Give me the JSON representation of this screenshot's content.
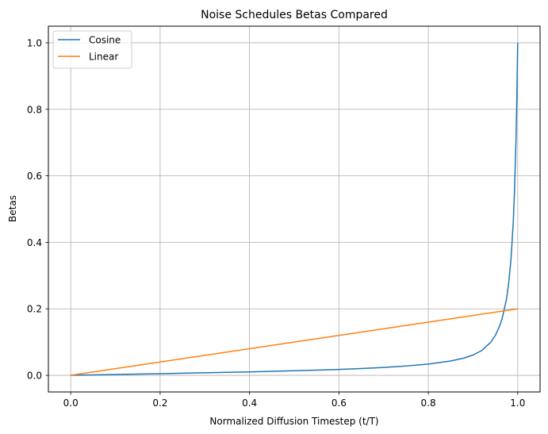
{
  "chart_data": {
    "type": "line",
    "title": "Noise Schedules Betas Compared",
    "xlabel": "Normalized Diffusion Timestep (t/T)",
    "ylabel": "Betas",
    "xlim": [
      -0.05,
      1.05
    ],
    "ylim": [
      -0.05,
      1.05
    ],
    "xticks": [
      "0.0",
      "0.2",
      "0.4",
      "0.6",
      "0.8",
      "1.0"
    ],
    "yticks": [
      "0.0",
      "0.2",
      "0.4",
      "0.6",
      "0.8",
      "1.0"
    ],
    "grid": true,
    "legend_position": "upper-left",
    "series": [
      {
        "name": "Cosine",
        "color": "#1f77b4",
        "x": [
          0.0,
          0.05,
          0.1,
          0.15,
          0.2,
          0.25,
          0.3,
          0.35,
          0.4,
          0.45,
          0.5,
          0.55,
          0.6,
          0.65,
          0.7,
          0.75,
          0.8,
          0.85,
          0.88,
          0.9,
          0.92,
          0.94,
          0.95,
          0.96,
          0.965,
          0.97,
          0.975,
          0.98,
          0.985,
          0.99,
          0.993,
          0.996,
          0.998,
          1.0
        ],
        "values": [
          0.0,
          0.0012,
          0.0025,
          0.0037,
          0.005,
          0.0063,
          0.0076,
          0.009,
          0.0104,
          0.012,
          0.0137,
          0.0156,
          0.0178,
          0.0205,
          0.0238,
          0.028,
          0.0338,
          0.043,
          0.052,
          0.061,
          0.075,
          0.1,
          0.12,
          0.15,
          0.17,
          0.2,
          0.23,
          0.28,
          0.35,
          0.46,
          0.56,
          0.7,
          0.83,
          1.0
        ]
      },
      {
        "name": "Linear",
        "color": "#ff7f0e",
        "x": [
          0.0,
          1.0
        ],
        "values": [
          0.0,
          0.2
        ]
      }
    ]
  }
}
